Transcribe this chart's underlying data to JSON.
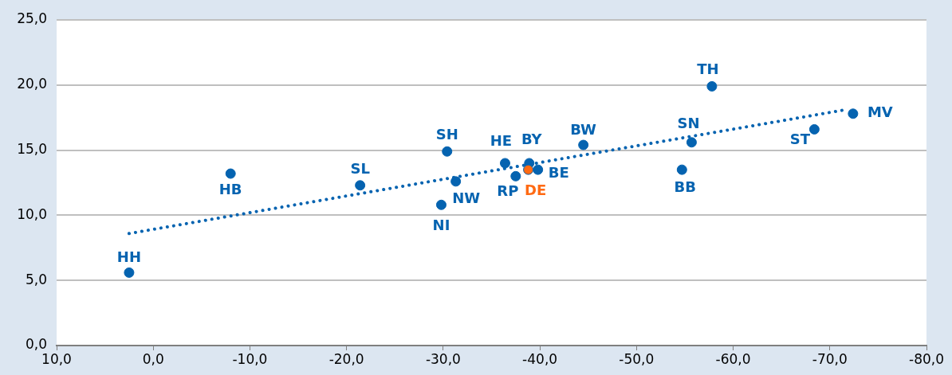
{
  "chart_data": {
    "type": "scatter",
    "xlim": [
      10,
      -80
    ],
    "xticks": [
      {
        "value": 10,
        "label": "10,0"
      },
      {
        "value": 0,
        "label": "0,0"
      },
      {
        "value": -10,
        "label": "-10,0"
      },
      {
        "value": -20,
        "label": "-20,0"
      },
      {
        "value": -30,
        "label": "-30,0"
      },
      {
        "value": -40,
        "label": "-40,0"
      },
      {
        "value": -50,
        "label": "-50,0"
      },
      {
        "value": -60,
        "label": "-60,0"
      },
      {
        "value": -70,
        "label": "-70,0"
      },
      {
        "value": -80,
        "label": "-80,0"
      }
    ],
    "ylim": [
      0,
      25
    ],
    "yticks": [
      {
        "value": 0,
        "label": "0,0"
      },
      {
        "value": 5,
        "label": "5,0"
      },
      {
        "value": 10,
        "label": "10,0"
      },
      {
        "value": 15,
        "label": "15,0"
      },
      {
        "value": 20,
        "label": "20,0"
      },
      {
        "value": 25,
        "label": "25,0"
      }
    ],
    "grid": "y",
    "legend": false,
    "marker": "circle",
    "series": [
      {
        "color": "#0563b0",
        "x": [
          2.5,
          -8.0,
          -21.4,
          -29.8,
          -30.4,
          -31.3,
          -36.4,
          -37.5,
          -38.9,
          -38.8,
          -39.8,
          -44.5,
          -54.7,
          -55.7,
          -57.8,
          -68.4,
          -72.4
        ],
        "values": [
          5.6,
          13.2,
          12.3,
          10.8,
          14.9,
          12.6,
          14.0,
          13.0,
          14.0,
          13.5,
          13.5,
          15.4,
          13.5,
          15.6,
          19.9,
          16.6,
          17.8
        ],
        "colors": [
          "#0563b0",
          "#0563b0",
          "#0563b0",
          "#0563b0",
          "#0563b0",
          "#0563b0",
          "#0563b0",
          "#0563b0",
          "#0563b0",
          "#ff6a13",
          "#0563b0",
          "#0563b0",
          "#0563b0",
          "#0563b0",
          "#0563b0",
          "#0563b0",
          "#0563b0"
        ]
      },
      {
        "type": "line",
        "color": "#0563b0",
        "line_style": "dotted",
        "marker": "none",
        "x": [
          2.5,
          -71.6
        ],
        "values": [
          8.6,
          18.1
        ]
      }
    ],
    "annotations": [
      {
        "text": "HH",
        "x": 2.5,
        "y": 5.6
      },
      {
        "text": "HB",
        "x": -8.0,
        "y": 13.2
      },
      {
        "text": "SL",
        "x": -21.4,
        "y": 12.3
      },
      {
        "text": "NI",
        "x": -29.8,
        "y": 10.8
      },
      {
        "text": "SH",
        "x": -30.4,
        "y": 14.9
      },
      {
        "text": "NW",
        "x": -31.3,
        "y": 12.6
      },
      {
        "text": "HE",
        "x": -36.4,
        "y": 14.0
      },
      {
        "text": "RP",
        "x": -37.5,
        "y": 13.0
      },
      {
        "text": "BY",
        "x": -38.9,
        "y": 14.0
      },
      {
        "text": "DE",
        "x": -38.8,
        "y": 13.5
      },
      {
        "text": "BE",
        "x": -39.8,
        "y": 13.5
      },
      {
        "text": "BW",
        "x": -44.5,
        "y": 15.4
      },
      {
        "text": "BB",
        "x": -54.7,
        "y": 13.5
      },
      {
        "text": "SN",
        "x": -55.7,
        "y": 15.6
      },
      {
        "text": "TH",
        "x": -57.8,
        "y": 19.9
      },
      {
        "text": "ST",
        "x": -68.4,
        "y": 16.6
      },
      {
        "text": "MV",
        "x": -72.4,
        "y": 17.8
      }
    ]
  }
}
